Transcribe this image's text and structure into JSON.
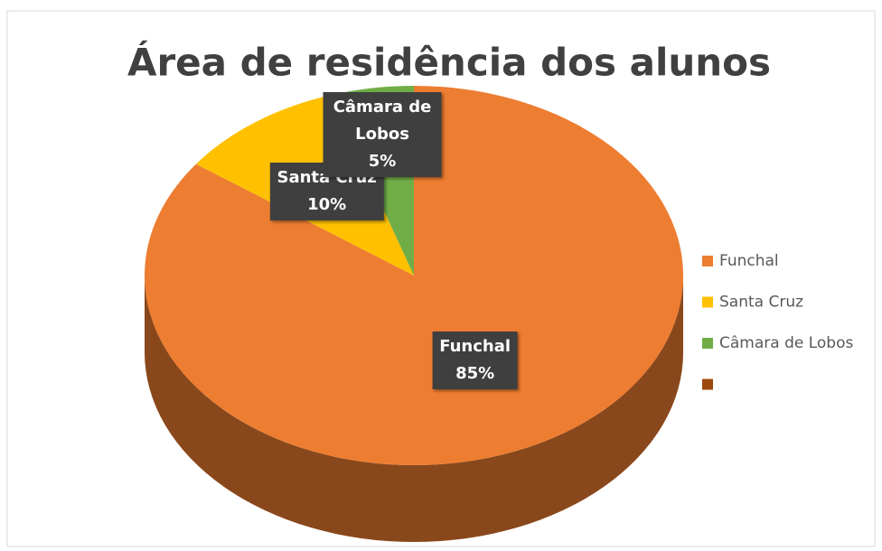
{
  "chart_data": {
    "type": "pie",
    "title": "Área de residência dos alunos",
    "categories": [
      "Funchal",
      "Santa Cruz",
      "Câmara de Lobos",
      null
    ],
    "values": [
      85,
      10,
      5,
      0
    ],
    "value_labels": [
      "85%",
      "10%",
      "5%",
      null
    ],
    "colors": [
      "#ED7D31",
      "#FFC000",
      "#70AD47",
      "#9E480E"
    ],
    "legend": "right"
  }
}
